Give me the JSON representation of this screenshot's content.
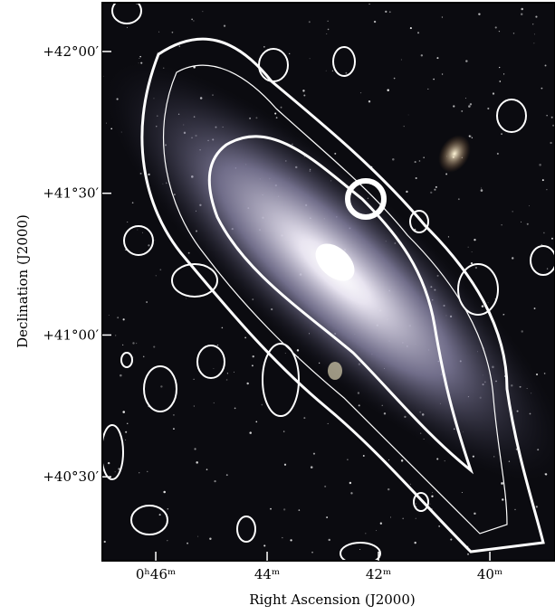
{
  "chart_data": {
    "type": "image",
    "xlabel": "Right Ascension (J2000)",
    "ylabel": "Declination (J2000)",
    "xlim": [
      46.96,
      38.83
    ],
    "xticks": [
      {
        "value": 46,
        "label": "0ʰ46ᵐ"
      },
      {
        "value": 44,
        "label": "44ᵐ"
      },
      {
        "value": 42,
        "label": "42ᵐ"
      },
      {
        "value": 40,
        "label": "40ᵐ"
      }
    ],
    "ylim": [
      40.204,
      42.172
    ],
    "yticks": [
      {
        "value": 42,
        "label": "+42°00′"
      },
      {
        "value": 41.5,
        "label": "+41°30′"
      },
      {
        "value": 41,
        "label": "+41°00′"
      },
      {
        "value": 40.5,
        "label": "+40°30′"
      }
    ]
  }
}
